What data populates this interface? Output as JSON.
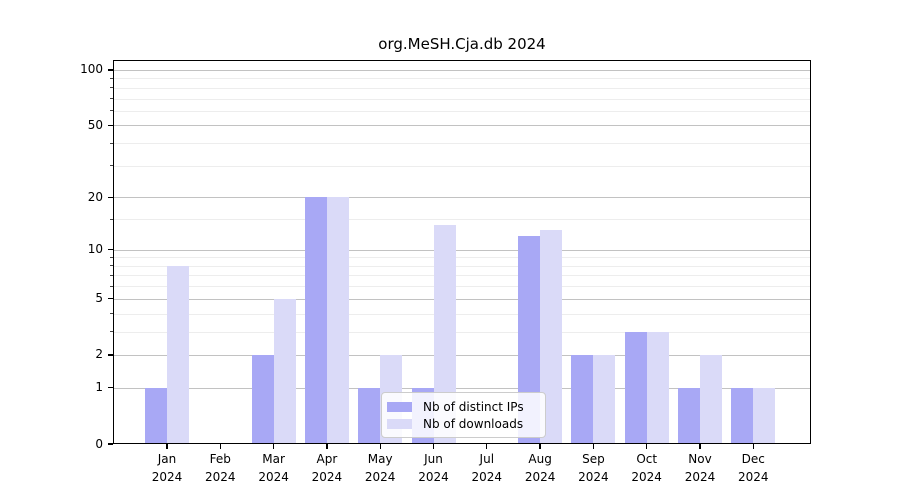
{
  "title": "org.MeSH.Cja.db 2024",
  "colors": {
    "ips_bar": "#a8a8f5",
    "downloads_bar": "#dadaf8",
    "grid_major": "#c2c2c2",
    "grid_minor": "#ededed",
    "axis_frame": "#000000",
    "background": "#ffffff"
  },
  "chart_data": {
    "type": "bar",
    "title": "org.MeSH.Cja.db 2024",
    "categories": [
      "Jan 2024",
      "Feb 2024",
      "Mar 2024",
      "Apr 2024",
      "May 2024",
      "Jun 2024",
      "Jul 2024",
      "Aug 2024",
      "Sep 2024",
      "Oct 2024",
      "Nov 2024",
      "Dec 2024"
    ],
    "series": [
      {
        "name": "Nb of distinct IPs",
        "color": "#a8a8f5",
        "values": [
          1,
          0,
          2,
          20,
          1,
          1,
          0,
          12,
          2,
          3,
          1,
          1
        ]
      },
      {
        "name": "Nb of downloads",
        "color": "#dadaf8",
        "values": [
          8,
          0,
          5,
          20,
          2,
          14,
          0,
          13,
          2,
          3,
          2,
          1
        ]
      }
    ],
    "xlabel": "",
    "ylabel": "",
    "yscale": "log10(1+x)",
    "ylim": [
      0,
      113
    ],
    "yticks": [
      0,
      1,
      2,
      5,
      10,
      20,
      50,
      100
    ],
    "yticks_minor": [
      3,
      4,
      6,
      7,
      8,
      9,
      15,
      30,
      40,
      60,
      70,
      80,
      90
    ],
    "grid": "horizontal",
    "legend_position": "lower-center"
  }
}
